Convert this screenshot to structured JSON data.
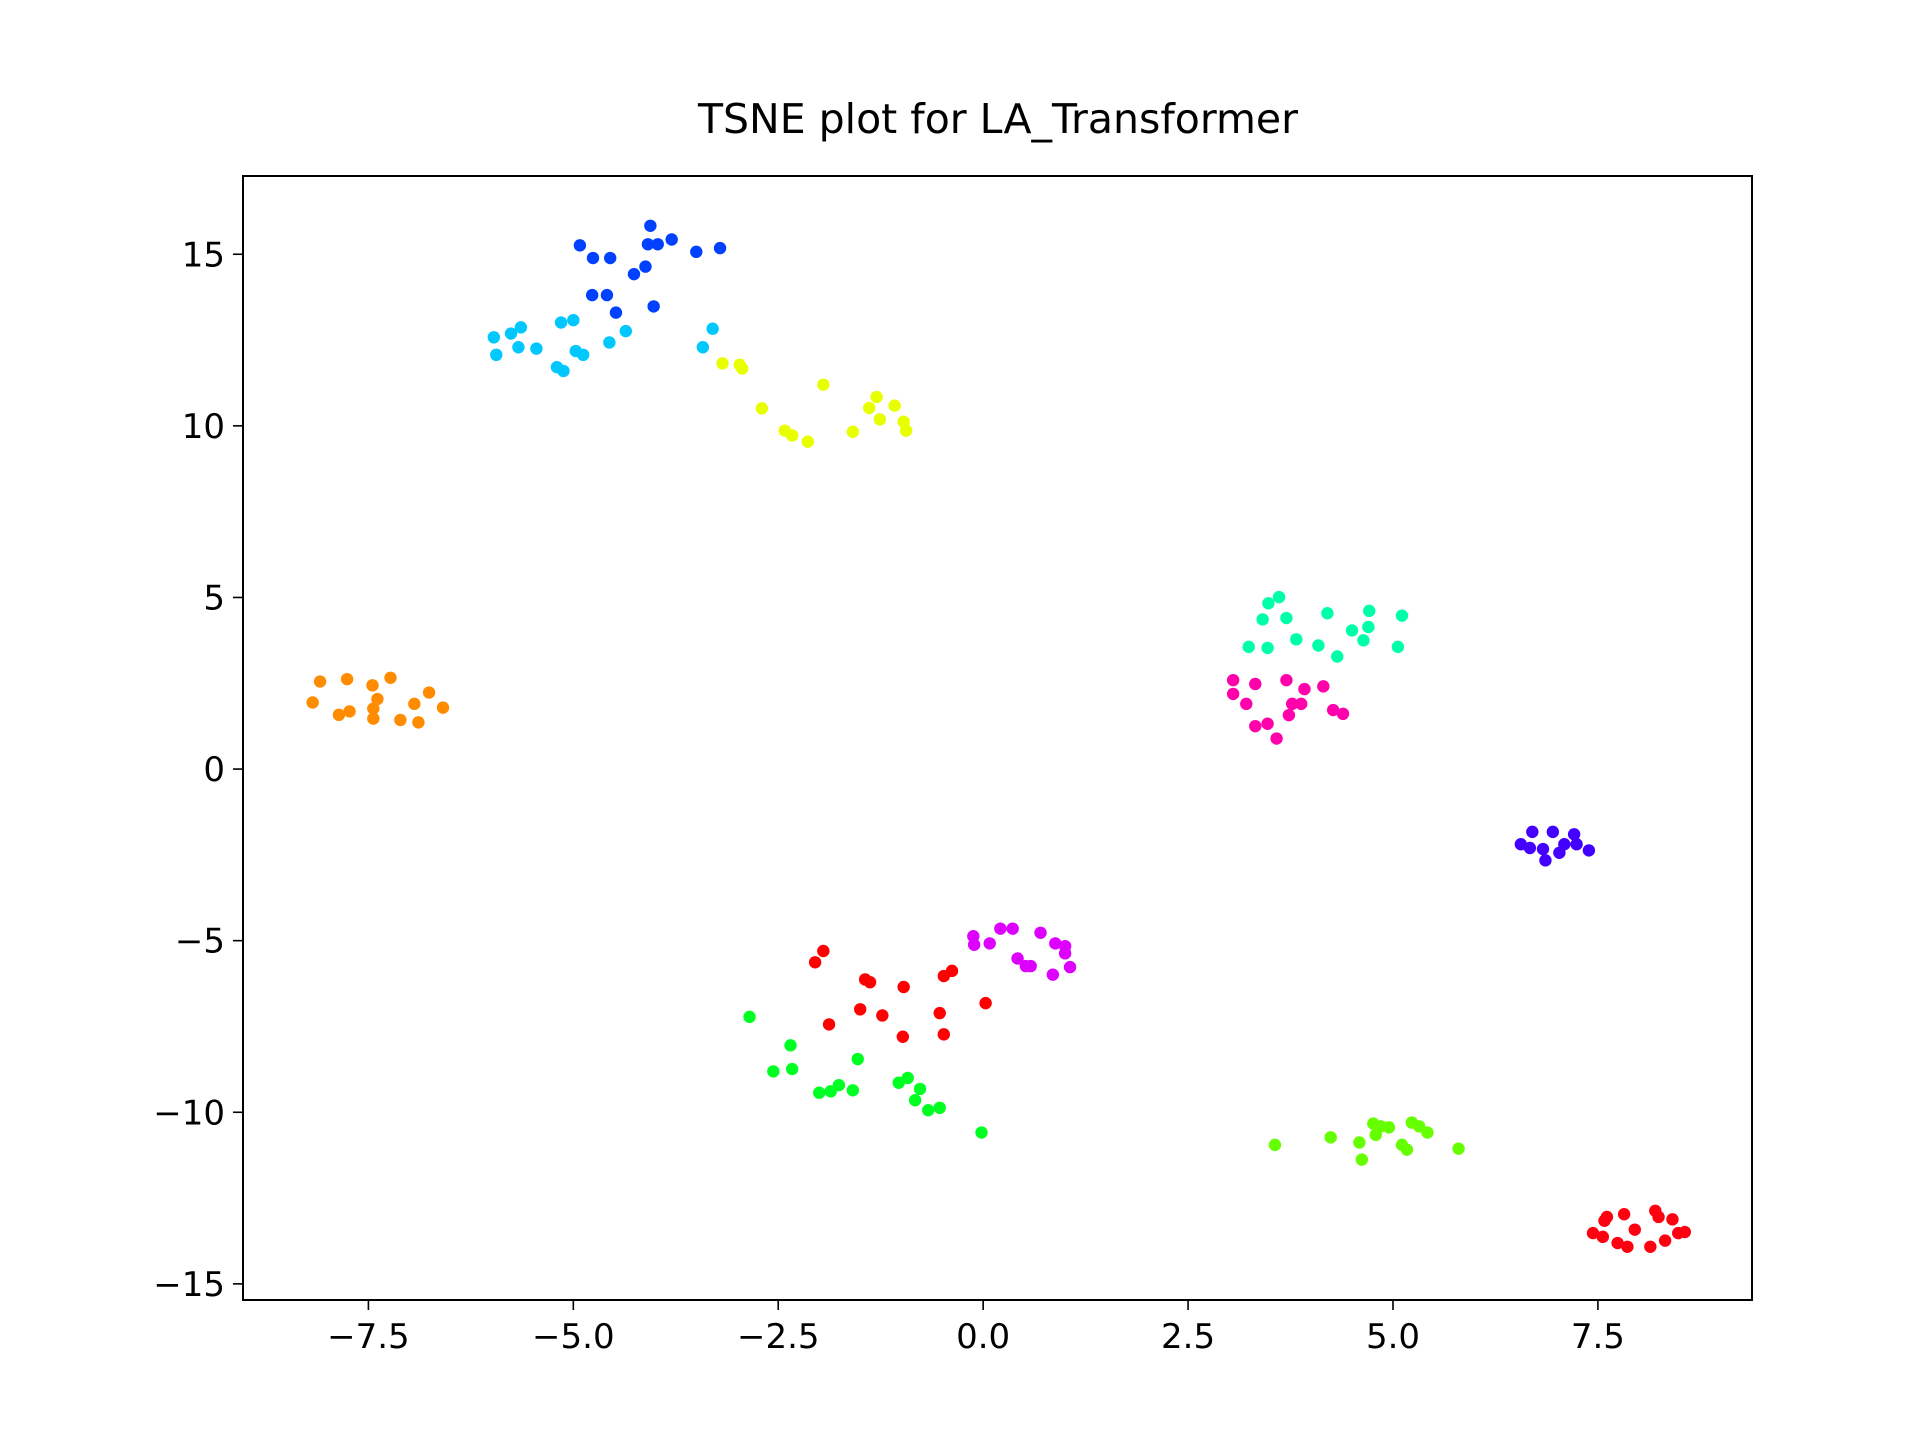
{
  "chart_data": {
    "type": "scatter",
    "title": "TSNE plot for LA_Transformer",
    "xlim": [
      -9.03,
      9.38
    ],
    "ylim": [
      -15.47,
      17.28
    ],
    "xticks": [
      {
        "value": -7.5,
        "label": "−7.5"
      },
      {
        "value": -5.0,
        "label": "−5.0"
      },
      {
        "value": -2.5,
        "label": "−2.5"
      },
      {
        "value": 0,
        "label": "0.0"
      },
      2.5,
      {
        "value": 5.0,
        "label": "5.0"
      },
      7.5
    ],
    "yticks": [
      {
        "value": -15,
        "label": "−15"
      },
      {
        "value": -10,
        "label": "−10"
      },
      {
        "value": -5,
        "label": "−5"
      },
      0,
      5,
      10,
      15
    ],
    "grid": false,
    "series": [
      {
        "color": "#0040ff",
        "x": [
          -4.92,
          -4.76,
          -4.55,
          -4.77,
          -4.59,
          -4.48,
          -4.26,
          -4.12,
          -4.06,
          -4.09,
          -3.97,
          -3.8,
          -4.02,
          -3.5,
          -3.21
        ],
        "y": [
          15.26,
          14.89,
          14.89,
          13.81,
          13.81,
          13.3,
          14.42,
          14.64,
          15.83,
          15.29,
          15.29,
          15.43,
          13.48,
          15.07,
          15.18
        ]
      },
      {
        "color": "#00c8ff",
        "x": [
          -5.97,
          -5.94,
          -5.76,
          -5.64,
          -5.67,
          -5.45,
          -5.15,
          -5.0,
          -5.2,
          -5.12,
          -4.97,
          -4.88,
          -4.56,
          -4.36,
          -3.42,
          -3.3
        ],
        "y": [
          12.58,
          12.07,
          12.69,
          12.87,
          12.29,
          12.25,
          13.01,
          13.08,
          11.71,
          11.6,
          12.18,
          12.07,
          12.43,
          12.76,
          12.29,
          12.83
        ]
      },
      {
        "color": "#e8ff00",
        "x": [
          -3.18,
          -2.97,
          -2.94,
          -2.7,
          -2.42,
          -2.33,
          -2.14,
          -1.95,
          -1.59,
          -1.39,
          -1.3,
          -1.26,
          -1.08,
          -0.97,
          -0.94
        ],
        "y": [
          11.82,
          11.78,
          11.67,
          10.51,
          9.86,
          9.72,
          9.54,
          11.2,
          9.83,
          10.52,
          10.84,
          10.19,
          10.59,
          10.12,
          9.86
        ]
      },
      {
        "color": "#ff8c00",
        "x": [
          -8.18,
          -8.09,
          -7.86,
          -7.76,
          -7.73,
          -7.45,
          -7.44,
          -7.44,
          -7.39,
          -7.23,
          -7.11,
          -6.94,
          -6.89,
          -6.76,
          -6.59
        ],
        "y": [
          1.94,
          2.55,
          1.58,
          2.62,
          1.68,
          2.44,
          1.76,
          1.47,
          2.04,
          2.66,
          1.43,
          1.9,
          1.36,
          2.23,
          1.79
        ]
      },
      {
        "color": "#00ffaa",
        "x": [
          3.24,
          3.41,
          3.47,
          3.48,
          3.61,
          3.7,
          3.82,
          4.09,
          4.2,
          4.32,
          4.5,
          4.64,
          4.71,
          4.7,
          5.06,
          5.11
        ],
        "y": [
          3.56,
          4.36,
          3.53,
          4.83,
          5.01,
          4.4,
          3.78,
          3.6,
          4.54,
          3.28,
          4.04,
          3.75,
          4.61,
          4.14,
          3.56,
          4.47
        ]
      },
      {
        "color": "#ff00aa",
        "x": [
          3.05,
          3.05,
          3.21,
          3.32,
          3.32,
          3.47,
          3.58,
          3.7,
          3.73,
          3.77,
          3.88,
          3.92,
          4.15,
          4.27,
          4.39
        ],
        "y": [
          2.59,
          2.19,
          1.9,
          2.48,
          1.25,
          1.32,
          0.89,
          2.59,
          1.57,
          1.9,
          1.9,
          2.33,
          2.41,
          1.72,
          1.61
        ]
      },
      {
        "color": "#4400ff",
        "x": [
          6.56,
          6.67,
          6.7,
          6.83,
          6.86,
          6.95,
          7.03,
          7.09,
          7.21,
          7.24,
          7.39
        ],
        "y": [
          -2.19,
          -2.3,
          -1.83,
          -2.33,
          -2.66,
          -1.83,
          -2.44,
          -2.19,
          -1.9,
          -2.19,
          -2.37
        ]
      },
      {
        "color": "#dd00ff",
        "x": [
          -0.12,
          -0.11,
          0.08,
          0.21,
          0.36,
          0.42,
          0.52,
          0.58,
          0.7,
          0.85,
          0.88,
          1.0,
          1.0,
          1.06
        ],
        "y": [
          -4.87,
          -5.12,
          -5.08,
          -4.65,
          -4.65,
          -5.52,
          -5.74,
          -5.74,
          -4.77,
          -5.99,
          -5.08,
          -5.16,
          -5.37,
          -5.77
        ]
      },
      {
        "color": "#ff0000",
        "x": [
          -2.05,
          -1.95,
          -1.88,
          -1.5,
          -1.44,
          -1.38,
          -1.23,
          -0.98,
          -0.97,
          -0.53,
          -0.48,
          -0.48,
          -0.38,
          0.03
        ],
        "y": [
          -5.63,
          -5.3,
          -7.44,
          -7.0,
          -6.13,
          -6.21,
          -7.18,
          -7.8,
          -6.35,
          -7.11,
          -6.03,
          -7.73,
          -5.88,
          -6.82
        ]
      },
      {
        "color": "#00ff22",
        "x": [
          -2.85,
          -2.56,
          -2.35,
          -2.33,
          -2.0,
          -1.86,
          -1.76,
          -1.59,
          -1.53,
          -1.03,
          -0.92,
          -0.83,
          -0.77,
          -0.67,
          -0.53,
          -0.02
        ],
        "y": [
          -7.22,
          -8.81,
          -8.05,
          -8.74,
          -9.43,
          -9.39,
          -9.21,
          -9.36,
          -8.45,
          -9.14,
          -9.0,
          -9.65,
          -9.32,
          -9.94,
          -9.87,
          -10.59
        ]
      },
      {
        "color": "#66ff00",
        "x": [
          3.56,
          4.24,
          4.59,
          4.62,
          4.76,
          4.79,
          4.85,
          4.95,
          5.11,
          5.17,
          5.23,
          5.32,
          5.42,
          5.8
        ],
        "y": [
          -10.95,
          -10.73,
          -10.88,
          -11.38,
          -10.33,
          -10.66,
          -10.41,
          -10.44,
          -10.95,
          -11.09,
          -10.3,
          -10.41,
          -10.59,
          -11.06
        ]
      },
      {
        "color": "#ff0010",
        "x": [
          7.44,
          7.56,
          7.58,
          7.61,
          7.74,
          7.82,
          7.86,
          7.95,
          8.14,
          8.2,
          8.24,
          8.32,
          8.41,
          8.48,
          8.56
        ],
        "y": [
          -13.52,
          -13.63,
          -13.16,
          -13.05,
          -13.81,
          -12.97,
          -13.92,
          -13.42,
          -13.92,
          -12.87,
          -13.05,
          -13.74,
          -13.12,
          -13.52,
          -13.49
        ]
      }
    ]
  }
}
